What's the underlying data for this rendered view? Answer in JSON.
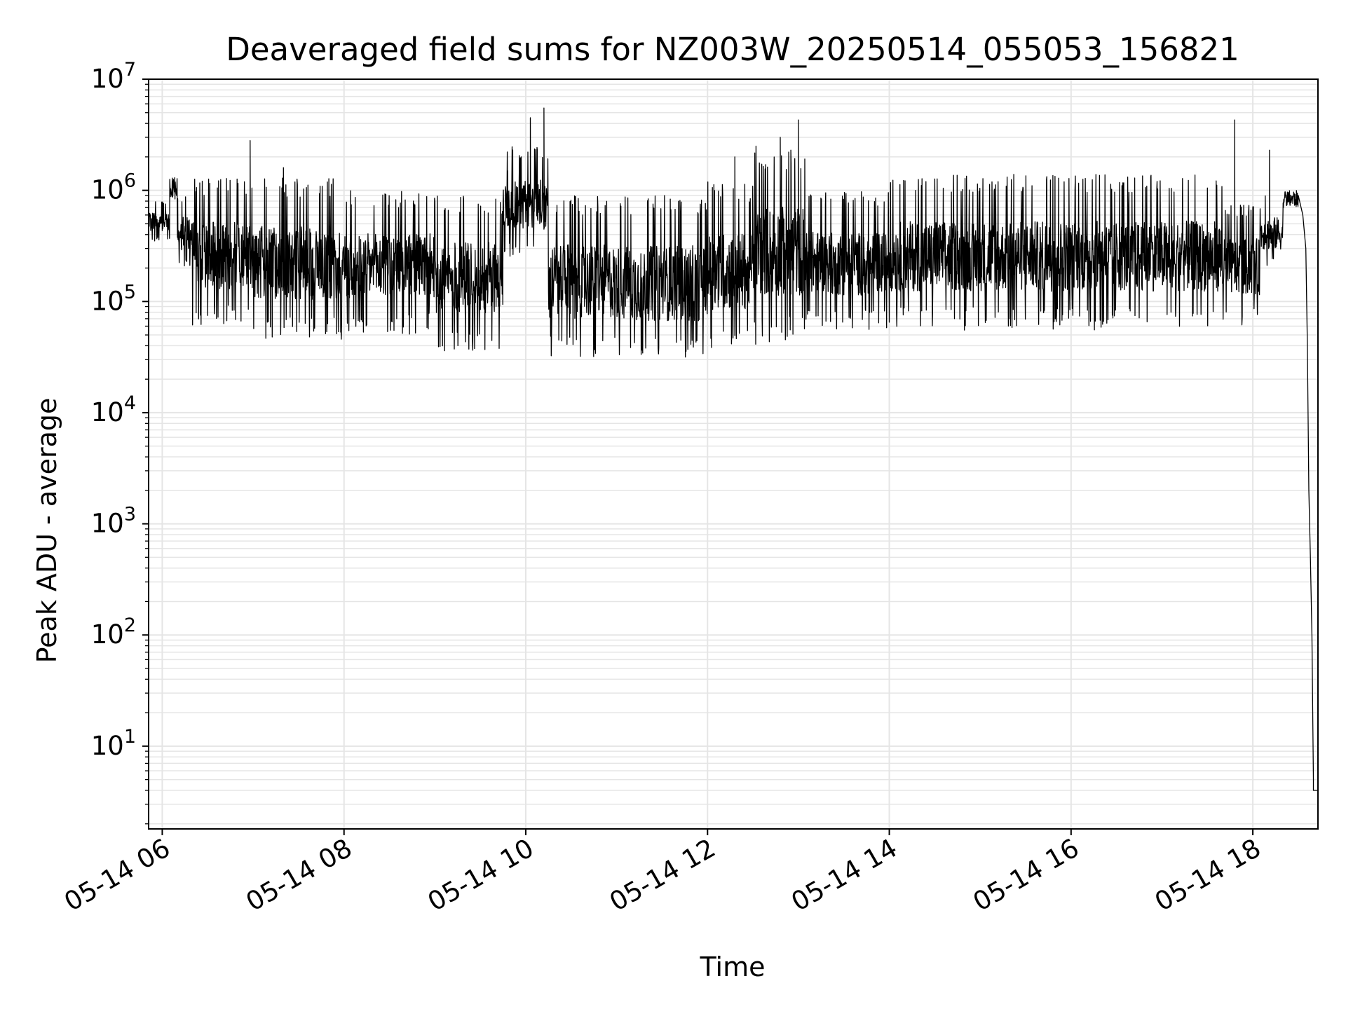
{
  "chart_data": {
    "type": "line",
    "title": "Deaveraged field sums for NZ003W_20250514_055053_156821",
    "xlabel": "Time",
    "ylabel": "Peak ADU - average",
    "yscale": "log",
    "ylim": [
      1.8,
      10000000
    ],
    "xlim": [
      "05-14 05:51",
      "05-14 18:43"
    ],
    "grid": true,
    "line_color": "#000000",
    "grid_color": "#e5e5e5",
    "x_ticks": [
      {
        "time": "05-14 06:00",
        "label": "05-14 06"
      },
      {
        "time": "05-14 08:00",
        "label": "05-14 08"
      },
      {
        "time": "05-14 10:00",
        "label": "05-14 10"
      },
      {
        "time": "05-14 12:00",
        "label": "05-14 12"
      },
      {
        "time": "05-14 14:00",
        "label": "05-14 14"
      },
      {
        "time": "05-14 16:00",
        "label": "05-14 16"
      },
      {
        "time": "05-14 18:00",
        "label": "05-14 18"
      }
    ],
    "y_ticks": [
      {
        "value": 10,
        "base": "10",
        "exp": "1"
      },
      {
        "value": 100,
        "base": "10",
        "exp": "2"
      },
      {
        "value": 1000,
        "base": "10",
        "exp": "3"
      },
      {
        "value": 10000,
        "base": "10",
        "exp": "4"
      },
      {
        "value": 100000,
        "base": "10",
        "exp": "5"
      },
      {
        "value": 1000000,
        "base": "10",
        "exp": "6"
      },
      {
        "value": 10000000,
        "base": "10",
        "exp": "7"
      }
    ],
    "series": [
      {
        "segments": [
          {
            "start": "05-14 05:51",
            "end": "05-14 06:05",
            "low": 350000,
            "high": 800000
          },
          {
            "start": "05-14 06:05",
            "end": "05-14 06:10",
            "low": 800000,
            "high": 1300000
          },
          {
            "start": "05-14 06:10",
            "end": "05-14 06:20",
            "low": 200000,
            "high": 900000
          },
          {
            "start": "05-14 06:20",
            "end": "05-14 07:00",
            "low": 60000,
            "high": 1300000
          },
          {
            "start": "05-14 07:00",
            "end": "05-14 08:00",
            "low": 45000,
            "high": 1300000
          },
          {
            "start": "05-14 08:00",
            "end": "05-14 09:00",
            "low": 50000,
            "high": 1000000
          },
          {
            "start": "05-14 09:00",
            "end": "05-14 09:45",
            "low": 35000,
            "high": 900000
          },
          {
            "start": "05-14 09:45",
            "end": "05-14 10:15",
            "low": 250000,
            "high": 2500000
          },
          {
            "start": "05-14 10:15",
            "end": "05-14 11:00",
            "low": 30000,
            "high": 900000
          },
          {
            "start": "05-14 11:00",
            "end": "05-14 12:00",
            "low": 28000,
            "high": 900000
          },
          {
            "start": "05-14 12:00",
            "end": "05-14 12:30",
            "low": 35000,
            "high": 1200000
          },
          {
            "start": "05-14 12:30",
            "end": "05-14 13:05",
            "low": 40000,
            "high": 2500000
          },
          {
            "start": "05-14 13:05",
            "end": "05-14 13:20",
            "low": 60000,
            "high": 1000000
          },
          {
            "start": "05-14 13:20",
            "end": "05-14 14:00",
            "low": 55000,
            "high": 1000000
          },
          {
            "start": "05-14 14:00",
            "end": "05-14 16:00",
            "low": 55000,
            "high": 1400000
          },
          {
            "start": "05-14 16:00",
            "end": "05-14 17:40",
            "low": 55000,
            "high": 1400000
          },
          {
            "start": "05-14 17:40",
            "end": "05-14 18:05",
            "low": 60000,
            "high": 800000
          },
          {
            "start": "05-14 18:05",
            "end": "05-14 18:20",
            "low": 200000,
            "high": 900000
          },
          {
            "start": "05-14 18:20",
            "end": "05-14 18:30",
            "low": 700000,
            "high": 1000000
          }
        ],
        "spikes": [
          {
            "time": "05-14 06:58",
            "value": 2800000
          },
          {
            "time": "05-14 07:20",
            "value": 1600000
          },
          {
            "time": "05-14 09:48",
            "value": 1500000
          },
          {
            "time": "05-14 09:57",
            "value": 2000000
          },
          {
            "time": "05-14 10:03",
            "value": 4500000
          },
          {
            "time": "05-14 10:12",
            "value": 5500000
          },
          {
            "time": "05-14 12:18",
            "value": 2000000
          },
          {
            "time": "05-14 12:32",
            "value": 2500000
          },
          {
            "time": "05-14 12:48",
            "value": 3000000
          },
          {
            "time": "05-14 12:55",
            "value": 2300000
          },
          {
            "time": "05-14 13:00",
            "value": 4300000
          },
          {
            "time": "05-14 17:48",
            "value": 4300000
          },
          {
            "time": "05-14 18:11",
            "value": 2300000
          }
        ],
        "drop": [
          [
            "05-14 18:30",
            900000
          ],
          [
            "05-14 18:33",
            600000
          ],
          [
            "05-14 18:35",
            300000
          ],
          [
            "05-14 18:36",
            40000
          ],
          [
            "05-14 18:37",
            2000
          ],
          [
            "05-14 18:38",
            500
          ],
          [
            "05-14 18:39",
            100
          ],
          [
            "05-14 18:40",
            5
          ],
          [
            "05-14 18:40",
            4
          ],
          [
            "05-14 18:43",
            4
          ]
        ]
      }
    ]
  }
}
